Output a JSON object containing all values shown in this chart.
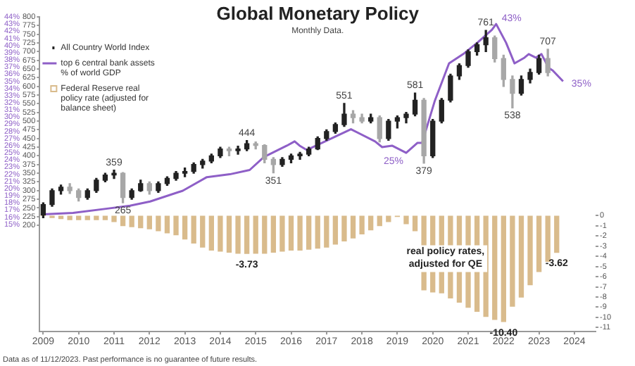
{
  "chart_data": {
    "type": "candlestick",
    "title": "Global Monetary Policy",
    "subtitle": "Monthly Data.",
    "annotations": [
      {
        "text": "359",
        "x": 2011.5,
        "y": 359
      },
      {
        "text": "265",
        "x": 2011.75,
        "y": 265
      },
      {
        "text": "444",
        "x": 2015.25,
        "y": 444
      },
      {
        "text": "351",
        "x": 2016.0,
        "y": 351
      },
      {
        "text": "551",
        "x": 2018.0,
        "y": 551
      },
      {
        "text": "581",
        "x": 2020.0,
        "y": 581
      },
      {
        "text": "379",
        "x": 2020.25,
        "y": 379
      },
      {
        "text": "761",
        "x": 2022.0,
        "y": 761
      },
      {
        "text": "538",
        "x": 2022.75,
        "y": 538
      },
      {
        "text": "707",
        "x": 2023.75,
        "y": 707
      },
      "real policy rates, adjusted for QE",
      "Data as of 11/12/2023. Past performance is no guarantee of future results."
    ],
    "xlim": [
      2009.4,
      2025.1
    ],
    "xticks": [
      {
        "value": 2009.5,
        "label": "2009"
      },
      {
        "value": 2010.5,
        "label": "2010"
      },
      {
        "value": 2011.5,
        "label": "2011"
      },
      {
        "value": 2012.5,
        "label": "2012"
      },
      {
        "value": 2013.5,
        "label": "2013"
      },
      {
        "value": 2014.5,
        "label": "2014"
      },
      {
        "value": 2015.5,
        "label": "2015"
      },
      {
        "value": 2016.5,
        "label": "2016"
      },
      {
        "value": 2017.5,
        "label": "2017"
      },
      {
        "value": 2018.5,
        "label": "2018"
      },
      {
        "value": 2019.5,
        "label": "2019"
      },
      {
        "value": 2020.5,
        "label": "2020"
      },
      {
        "value": 2021.5,
        "label": "2021"
      },
      {
        "value": 2022.5,
        "label": "2022"
      },
      {
        "value": 2023.5,
        "label": "2023"
      },
      {
        "value": 2024.5,
        "label": "2024"
      }
    ],
    "ylim": [
      -106,
      800
    ],
    "yticks": [
      200,
      225,
      250,
      275,
      300,
      325,
      350,
      375,
      400,
      425,
      450,
      475,
      500,
      525,
      550,
      575,
      600,
      625,
      650,
      675,
      700,
      725,
      750,
      775,
      800
    ],
    "y2lim": [
      0,
      44
    ],
    "y2ticks": [
      {
        "value": 15,
        "label": "15%"
      },
      {
        "value": 16,
        "label": "16%"
      },
      {
        "value": 17,
        "label": "17%"
      },
      {
        "value": 18,
        "label": "18%"
      },
      {
        "value": 19,
        "label": "19%"
      },
      {
        "value": 20,
        "label": "20%"
      },
      {
        "value": 21,
        "label": "21%"
      },
      {
        "value": 22,
        "label": "22%"
      },
      {
        "value": 23,
        "label": "23%"
      },
      {
        "value": 24,
        "label": "24%"
      },
      {
        "value": 25,
        "label": "25%"
      },
      {
        "value": 26,
        "label": "26%"
      },
      {
        "value": 27,
        "label": "27%"
      },
      {
        "value": 28,
        "label": "28%"
      },
      {
        "value": 29,
        "label": "29%"
      },
      {
        "value": 30,
        "label": "30%"
      },
      {
        "value": 31,
        "label": "31%"
      },
      {
        "value": 32,
        "label": "32%"
      },
      {
        "value": 33,
        "label": "33%"
      },
      {
        "value": 34,
        "label": "34%"
      },
      {
        "value": 35,
        "label": "35%"
      },
      {
        "value": 36,
        "label": "36%"
      },
      {
        "value": 37,
        "label": "37%"
      },
      {
        "value": 38,
        "label": "38%"
      },
      {
        "value": 39,
        "label": "39%"
      },
      {
        "value": 40,
        "label": "40%"
      },
      {
        "value": 41,
        "label": "41%"
      },
      {
        "value": 42,
        "label": "42%"
      },
      {
        "value": 43,
        "label": "43%"
      },
      {
        "value": 44,
        "label": "44%"
      }
    ],
    "y3lim": [
      -11.4,
      19.5
    ],
    "y3ticks": [
      0,
      -1,
      -2,
      -3,
      -4,
      -5,
      -6,
      -7,
      -8,
      -9,
      -10,
      -11
    ],
    "legend": "top left",
    "marker": "none",
    "line_style": "solid",
    "series": [
      {
        "name": "All Country World Index",
        "color": "#222222",
        "colors": [
          "#222222",
          "#222222",
          "#222222",
          "#a7a7a7",
          "#a7a7a7",
          "#222222",
          "#222222",
          "#222222",
          "#222222",
          "#a7a7a7",
          "#222222",
          "#222222",
          "#a7a7a7",
          "#222222",
          "#222222",
          "#222222",
          "#222222",
          "#222222",
          "#222222",
          "#222222",
          "#222222",
          "#a7a7a7",
          "#222222",
          "#222222",
          "#a7a7a7",
          "#a7a7a7",
          "#a7a7a7",
          "#222222",
          "#222222",
          "#222222",
          "#222222",
          "#222222",
          "#222222",
          "#222222",
          "#222222",
          "#a7a7a7",
          "#a7a7a7",
          "#222222",
          "#a7a7a7",
          "#222222",
          "#222222",
          "#222222",
          "#222222",
          "#a7a7a7",
          "#222222",
          "#222222",
          "#222222",
          "#222222",
          "#222222",
          "#222222",
          "#222222",
          "#a7a7a7",
          "#a7a7a7",
          "#a7a7a7",
          "#222222",
          "#222222",
          "#222222",
          "#a7a7a7"
        ],
        "x": [
          2009.5,
          2009.75,
          2010.0,
          2010.25,
          2010.5,
          2010.75,
          2011.0,
          2011.25,
          2011.5,
          2011.75,
          2012.0,
          2012.25,
          2012.5,
          2012.75,
          2013.0,
          2013.25,
          2013.5,
          2013.75,
          2014.0,
          2014.25,
          2014.5,
          2014.75,
          2015.0,
          2015.25,
          2015.5,
          2015.75,
          2016.0,
          2016.25,
          2016.5,
          2016.75,
          2017.0,
          2017.25,
          2017.5,
          2017.75,
          2018.0,
          2018.25,
          2018.5,
          2018.75,
          2019.0,
          2019.25,
          2019.5,
          2019.75,
          2020.0,
          2020.25,
          2020.5,
          2020.75,
          2021.0,
          2021.25,
          2021.5,
          2021.75,
          2022.0,
          2022.25,
          2022.5,
          2022.75,
          2023.0,
          2023.25,
          2023.5,
          2023.75
        ],
        "ohlc": [
          [
            230,
            265,
            222,
            260
          ],
          [
            260,
            305,
            255,
            300
          ],
          [
            300,
            316,
            290,
            310
          ],
          [
            310,
            320,
            292,
            300
          ],
          [
            300,
            305,
            270,
            280
          ],
          [
            280,
            305,
            275,
            300
          ],
          [
            300,
            335,
            295,
            330
          ],
          [
            330,
            350,
            325,
            345
          ],
          [
            345,
            359,
            335,
            350
          ],
          [
            350,
            352,
            265,
            280
          ],
          [
            280,
            305,
            275,
            300
          ],
          [
            300,
            330,
            298,
            320
          ],
          [
            320,
            325,
            290,
            300
          ],
          [
            300,
            325,
            295,
            320
          ],
          [
            320,
            340,
            315,
            335
          ],
          [
            335,
            355,
            330,
            350
          ],
          [
            350,
            365,
            340,
            355
          ],
          [
            355,
            380,
            350,
            375
          ],
          [
            375,
            390,
            365,
            385
          ],
          [
            385,
            405,
            380,
            400
          ],
          [
            400,
            425,
            395,
            420
          ],
          [
            420,
            425,
            400,
            415
          ],
          [
            415,
            428,
            405,
            420
          ],
          [
            420,
            444,
            415,
            435
          ],
          [
            435,
            440,
            420,
            430
          ],
          [
            430,
            432,
            380,
            390
          ],
          [
            390,
            395,
            351,
            375
          ],
          [
            375,
            395,
            370,
            390
          ],
          [
            390,
            405,
            380,
            400
          ],
          [
            400,
            410,
            390,
            405
          ],
          [
            405,
            425,
            400,
            420
          ],
          [
            420,
            455,
            418,
            450
          ],
          [
            450,
            475,
            445,
            470
          ],
          [
            470,
            495,
            465,
            490
          ],
          [
            490,
            551,
            485,
            520
          ],
          [
            520,
            530,
            495,
            510
          ],
          [
            510,
            520,
            495,
            500
          ],
          [
            500,
            520,
            495,
            510
          ],
          [
            510,
            515,
            440,
            450
          ],
          [
            450,
            505,
            445,
            500
          ],
          [
            500,
            515,
            480,
            510
          ],
          [
            510,
            525,
            495,
            520
          ],
          [
            520,
            581,
            515,
            560
          ],
          [
            560,
            565,
            379,
            400
          ],
          [
            400,
            505,
            395,
            500
          ],
          [
            500,
            565,
            495,
            560
          ],
          [
            560,
            635,
            555,
            630
          ],
          [
            630,
            665,
            620,
            660
          ],
          [
            660,
            705,
            655,
            700
          ],
          [
            700,
            725,
            690,
            720
          ],
          [
            720,
            761,
            700,
            740
          ],
          [
            740,
            745,
            670,
            680
          ],
          [
            680,
            690,
            600,
            620
          ],
          [
            620,
            630,
            538,
            580
          ],
          [
            580,
            630,
            575,
            620
          ],
          [
            620,
            650,
            610,
            640
          ],
          [
            640,
            690,
            635,
            680
          ],
          [
            680,
            707,
            630,
            640
          ]
        ]
      },
      {
        "type": "line",
        "name": "top 6 central bank assets % of world GDP",
        "color": "#8e5fc7",
        "axis": "y2",
        "x": [
          2009.5,
          2010.34,
          2011.31,
          2011.95,
          2012.52,
          2013.44,
          2014.12,
          2014.77,
          2015.33,
          2015.73,
          2016.38,
          2016.6,
          2016.74,
          2016.94,
          2017.46,
          2018.19,
          2018.87,
          2019.07,
          2019.35,
          2019.75,
          2020.07,
          2020.2,
          2020.56,
          2020.96,
          2021.36,
          2021.76,
          2022.17,
          2022.29,
          2022.57,
          2022.81,
          2023.09,
          2023.21,
          2023.41,
          2023.57,
          2023.77,
          2023.89,
          2024.18
        ],
        "values": [
          16.4,
          16.6,
          17.2,
          17.6,
          18.2,
          19.7,
          21.6,
          22.0,
          22.6,
          24.4,
          26.0,
          26.6,
          26.0,
          25.4,
          26.6,
          28.3,
          26.6,
          25.8,
          26.0,
          25,
          26.4,
          26.4,
          32.3,
          37.5,
          38.8,
          40.4,
          42.2,
          43,
          40.4,
          37.5,
          38.3,
          38.8,
          38.3,
          38.8,
          36.9,
          36.5,
          35
        ],
        "value_labels": [
          null,
          null,
          null,
          null,
          null,
          null,
          null,
          null,
          null,
          null,
          null,
          null,
          null,
          null,
          null,
          null,
          null,
          null,
          null,
          "25%",
          null,
          null,
          null,
          null,
          null,
          null,
          null,
          "43%",
          null,
          null,
          null,
          null,
          null,
          null,
          null,
          null,
          "35%"
        ]
      },
      {
        "type": "bar",
        "name": "Federal Reserve real policy rate (adjusted for balance sheet)",
        "color": "#d9bb8c",
        "axis": "y3",
        "x": [
          2009.5,
          2009.75,
          2010.0,
          2010.25,
          2010.5,
          2010.75,
          2011.0,
          2011.25,
          2011.5,
          2011.75,
          2012.0,
          2012.25,
          2012.5,
          2012.75,
          2013.0,
          2013.25,
          2013.5,
          2013.75,
          2014.0,
          2014.25,
          2014.5,
          2014.75,
          2015.0,
          2015.25,
          2015.5,
          2015.75,
          2016.0,
          2016.25,
          2016.5,
          2016.75,
          2017.0,
          2017.25,
          2017.5,
          2017.75,
          2018.0,
          2018.25,
          2018.5,
          2018.75,
          2019.0,
          2019.25,
          2019.5,
          2019.75,
          2020.0,
          2020.25,
          2020.5,
          2020.75,
          2021.0,
          2021.25,
          2021.5,
          2021.75,
          2022.0,
          2022.25,
          2022.5,
          2022.75,
          2023.0,
          2023.25,
          2023.5,
          2023.75,
          2024.0
        ],
        "values": [
          0,
          -0.2,
          -0.3,
          -0.4,
          -0.4,
          -0.4,
          -0.4,
          -0.4,
          -0.6,
          -1.0,
          -1.1,
          -1.2,
          -1.3,
          -1.5,
          -1.7,
          -1.9,
          -2.3,
          -2.7,
          -3.1,
          -3.4,
          -3.5,
          -3.6,
          -3.7,
          -3.73,
          -3.7,
          -3.7,
          -3.6,
          -3.5,
          -3.4,
          -3.4,
          -3.3,
          -3.2,
          -3.1,
          -2.8,
          -2.5,
          -2.2,
          -1.8,
          -1.4,
          -1.0,
          -0.6,
          -0.1,
          -0.8,
          -1.5,
          -7.3,
          -7.5,
          -7.6,
          -8.1,
          -8.5,
          -9.0,
          -9.4,
          -9.9,
          -10.2,
          -10.4,
          -8.9,
          -8.0,
          -6.8,
          -5.5,
          -4.5,
          -3.62
        ],
        "value_labels": [
          null,
          null,
          null,
          null,
          null,
          null,
          null,
          null,
          null,
          null,
          null,
          null,
          null,
          null,
          null,
          null,
          null,
          null,
          null,
          null,
          null,
          null,
          null,
          "-3.73",
          null,
          null,
          null,
          null,
          null,
          null,
          null,
          null,
          null,
          null,
          null,
          null,
          null,
          null,
          null,
          null,
          null,
          null,
          null,
          null,
          null,
          null,
          null,
          null,
          null,
          null,
          null,
          null,
          "-10.40",
          null,
          null,
          null,
          null,
          null,
          "-3.62"
        ]
      }
    ]
  }
}
